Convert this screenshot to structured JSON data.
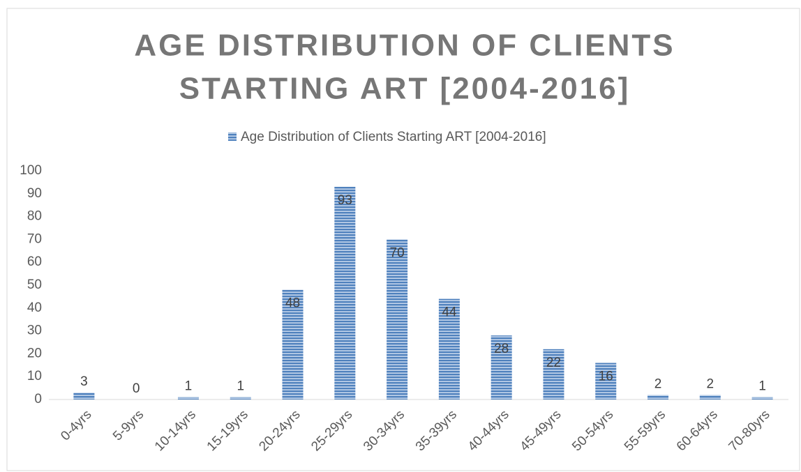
{
  "chart_data": {
    "type": "bar",
    "title": [
      "AGE DISTRIBUTION OF CLIENTS",
      "STARTING ART [2004-2016]"
    ],
    "categories": [
      "0-4yrs",
      "5-9yrs",
      "10-14yrs",
      "15-19yrs",
      "20-24yrs",
      "25-29yrs",
      "30-34yrs",
      "35-39yrs",
      "40-44yrs",
      "45-49yrs",
      "50-54yrs",
      "55-59yrs",
      "60-64yrs",
      "70-80yrs"
    ],
    "series": [
      {
        "name": "Age Distribution of Clients Starting ART [2004-2016]",
        "color": "#4f81bd",
        "values": [
          3,
          0,
          1,
          1,
          48,
          93,
          70,
          44,
          28,
          22,
          16,
          2,
          2,
          1
        ]
      }
    ],
    "ylim": [
      0,
      100
    ],
    "yticks": [
      0,
      10,
      20,
      30,
      40,
      50,
      60,
      70,
      80,
      90,
      100
    ],
    "legend": "top",
    "grid": false
  }
}
